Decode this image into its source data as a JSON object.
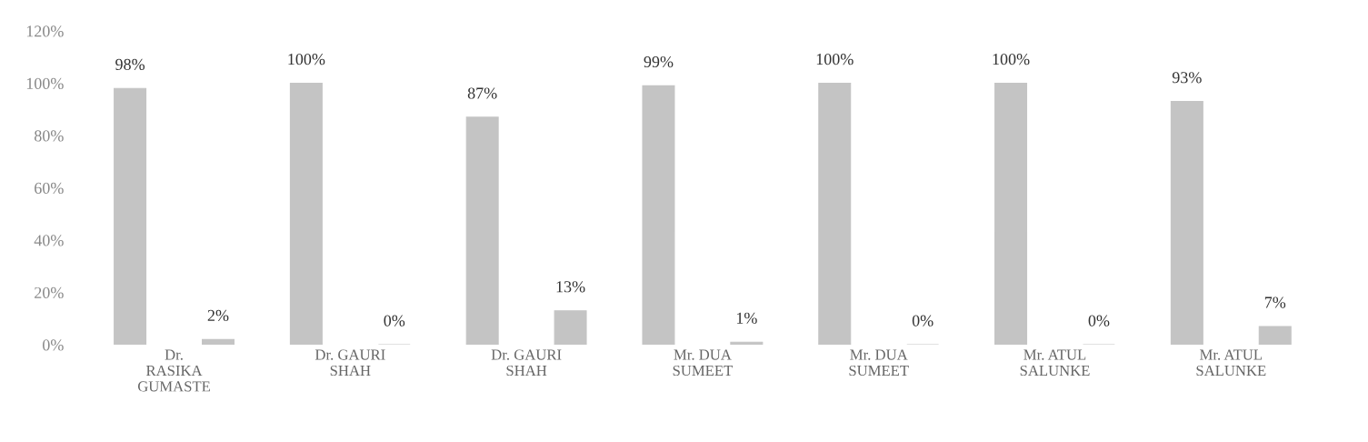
{
  "chart_data": {
    "type": "bar",
    "categories": [
      "Dr.\nRASIKA\nGUMASTE",
      "Dr. GAURI\nSHAH",
      "Dr. GAURI\nSHAH",
      "Mr. DUA\nSUMEET",
      "Mr. DUA\nSUMEET",
      "Mr. ATUL\nSALUNKE",
      "Mr. ATUL\nSALUNKE"
    ],
    "series": [
      {
        "color": "#c4c4c4",
        "values": [
          98,
          100,
          87,
          99,
          100,
          100,
          93
        ],
        "value_labels": [
          "98%",
          "100%",
          "87%",
          "99%",
          "100%",
          "100%",
          "93%"
        ]
      },
      {
        "color": "#c4c4c4",
        "values": [
          2,
          0,
          13,
          1,
          0,
          0,
          7
        ],
        "value_labels": [
          "2%",
          "0%",
          "13%",
          "1%",
          "0%",
          "0%",
          "7%"
        ]
      }
    ],
    "ylim": [
      0,
      120
    ],
    "yticks": [
      {
        "value": 0,
        "label": "0%"
      },
      {
        "value": 20,
        "label": "20%"
      },
      {
        "value": 40,
        "label": "40%"
      },
      {
        "value": 60,
        "label": "60%"
      },
      {
        "value": 80,
        "label": "80%"
      },
      {
        "value": 100,
        "label": "100%"
      },
      {
        "value": 120,
        "label": "120%"
      }
    ],
    "grid": false,
    "legend": false
  }
}
